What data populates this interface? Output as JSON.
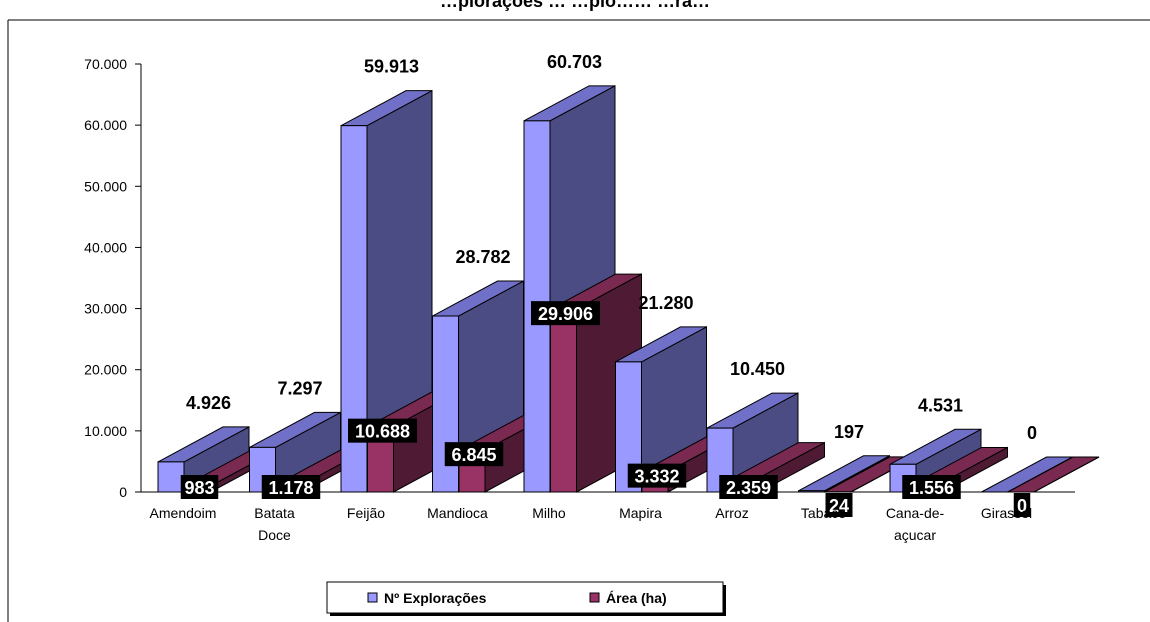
{
  "chart_data": {
    "type": "bar",
    "title": "…plorações … …plo…… …ra…",
    "categories": [
      "Amendoim",
      "Batata Doce",
      "Feijão",
      "Mandioca",
      "Milho",
      "Mapira",
      "Arroz",
      "Tabaco",
      "Cana-de-açucar",
      "Girassol"
    ],
    "category_lines": [
      [
        "Amendoim"
      ],
      [
        "Batata",
        "Doce"
      ],
      [
        "Feijão"
      ],
      [
        "Mandioca"
      ],
      [
        "Milho"
      ],
      [
        "Mapira"
      ],
      [
        "Arroz"
      ],
      [
        "Tabaco"
      ],
      [
        "Cana-de-",
        "açucar"
      ],
      [
        "Girassol"
      ]
    ],
    "series": [
      {
        "name": "Nº Explorações",
        "values": [
          4926,
          7297,
          59913,
          28782,
          60703,
          21280,
          10450,
          197,
          4531,
          0
        ],
        "labels": [
          "4.926",
          "7.297",
          "59.913",
          "28.782",
          "60.703",
          "21.280",
          "10.450",
          "197",
          "4.531",
          "0"
        ]
      },
      {
        "name": "Área (ha)",
        "values": [
          983,
          1178,
          10688,
          6845,
          29906,
          3332,
          2359,
          24,
          1556,
          0
        ],
        "labels": [
          "983",
          "1.178",
          "10.688",
          "6.845",
          "29.906",
          "3.332",
          "2.359",
          "24",
          "1.556",
          "0"
        ]
      }
    ],
    "ylim": [
      0,
      70000
    ],
    "yticks": [
      0,
      10000,
      20000,
      30000,
      40000,
      50000,
      60000,
      70000
    ],
    "ytick_labels": [
      "0",
      "10.000",
      "20.000",
      "30.000",
      "40.000",
      "50.000",
      "60.000",
      "70.000"
    ],
    "legend_position": "bottom",
    "grid": false,
    "three_d": true,
    "colors": {
      "series1_front": "#9999ff",
      "series1_top": "#7070c8",
      "series1_side": "#4c4c85",
      "series2_front": "#993366",
      "series2_top": "#7a2951",
      "series2_side": "#4e1a34",
      "area_label_bg": "#000000"
    }
  }
}
